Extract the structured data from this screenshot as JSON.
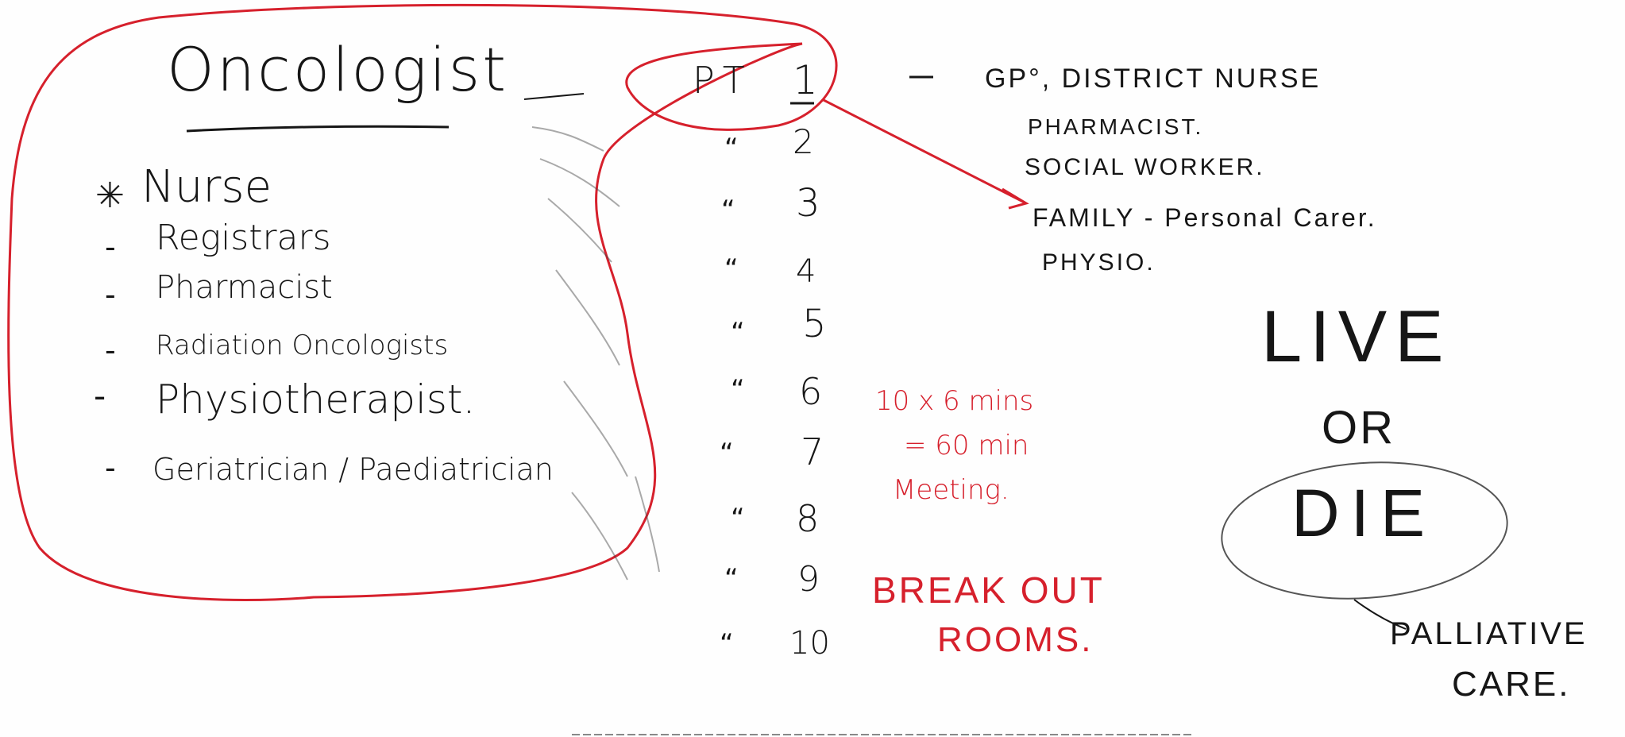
{
  "left": {
    "title": "Oncologist",
    "items": [
      {
        "bullet": "✳",
        "label": "Nurse"
      },
      {
        "bullet": "-",
        "label": "Registrars"
      },
      {
        "bullet": "-",
        "label": "Pharmacist"
      },
      {
        "bullet": "-",
        "label": "Radiation Oncologists"
      },
      {
        "bullet": "-",
        "label": "Physiotherapist."
      },
      {
        "bullet": "-",
        "label": "Geriatrician / Paediatrician"
      }
    ]
  },
  "patients": {
    "prefix": "PT",
    "first": "1",
    "ditto": "“",
    "numbers": [
      "2",
      "3",
      "4",
      "5",
      "6",
      "7",
      "8",
      "9",
      "10"
    ]
  },
  "right": {
    "lines": [
      "GP°, DISTRICT NURSE",
      "PHARMACIST.",
      "SOCIAL WORKER.",
      "FAMILY - Personal Carer.",
      "PHYSIO."
    ]
  },
  "meeting_note": [
    "10 x 6 mins",
    "= 60 min",
    "Meeting."
  ],
  "breakout": [
    "BREAK OUT",
    "ROOMS."
  ],
  "outcome": {
    "live": "LIVE",
    "or": "OR",
    "die": "DIE"
  },
  "palliative": [
    "PALLIATIVE",
    "CARE."
  ],
  "colors": {
    "ink": "#161616",
    "red_marker": "#d6202c",
    "board": "#fefefe"
  }
}
